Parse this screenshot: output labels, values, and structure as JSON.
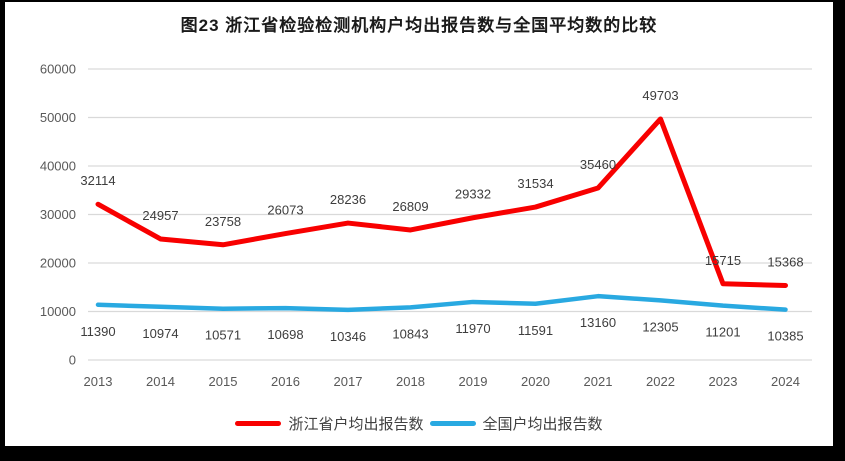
{
  "chart_data": {
    "type": "line",
    "title": "图23  浙江省检验检测机构户均出报告数与全国平均数的比较",
    "categories": [
      "2013",
      "2014",
      "2015",
      "2016",
      "2017",
      "2018",
      "2019",
      "2020",
      "2021",
      "2022",
      "2023",
      "2024"
    ],
    "series": [
      {
        "name": "浙江省户均出报告数",
        "color": "#F80000",
        "data_labels": "above",
        "values": [
          32114,
          24957,
          23758,
          26073,
          28236,
          26809,
          29332,
          31534,
          35460,
          49703,
          15715,
          15368
        ]
      },
      {
        "name": "全国户均出报告数",
        "color": "#29A9E1",
        "data_labels": "below",
        "values": [
          11390,
          10974,
          10571,
          10698,
          10346,
          10843,
          11970,
          11591,
          13160,
          12305,
          11201,
          10385
        ]
      }
    ],
    "xlabel": "",
    "ylabel": "",
    "ylim": [
      0,
      60000
    ],
    "yticks": [
      0,
      10000,
      20000,
      30000,
      40000,
      50000,
      60000
    ],
    "grid": true,
    "legend_position": "bottom",
    "colors": {
      "gridline": "#D9D9D9",
      "tick_label": "#595959",
      "data_label": "#3D3D3D",
      "background": "#FFFFFF",
      "frame": "#000000"
    }
  }
}
